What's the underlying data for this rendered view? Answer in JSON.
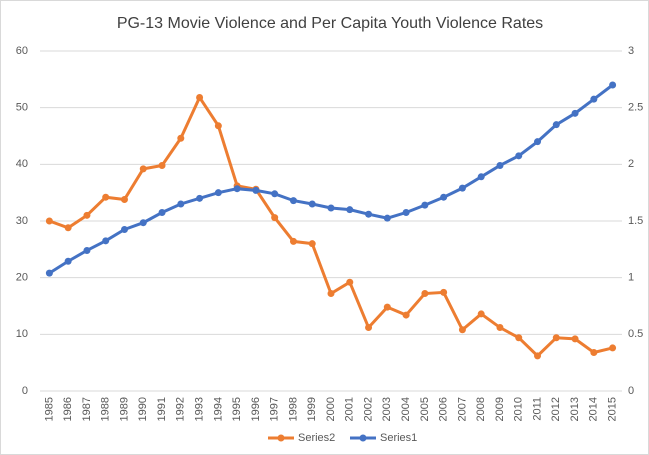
{
  "chart_data": {
    "type": "line",
    "title": "PG-13 Movie Violence and Per Capita Youth Violence Rates",
    "categories": [
      "1985",
      "1986",
      "1987",
      "1988",
      "1989",
      "1990",
      "1991",
      "1992",
      "1993",
      "1994",
      "1995",
      "1996",
      "1997",
      "1998",
      "1999",
      "2000",
      "2001",
      "2002",
      "2003",
      "2004",
      "2005",
      "2006",
      "2007",
      "2008",
      "2009",
      "2010",
      "2011",
      "2012",
      "2013",
      "2014",
      "2015"
    ],
    "series": [
      {
        "name": "Series2",
        "color": "#ed7d31",
        "axis": "y2",
        "values": [
          1.5,
          1.44,
          1.55,
          1.71,
          1.69,
          1.96,
          1.99,
          2.23,
          2.59,
          2.34,
          1.81,
          1.78,
          1.53,
          1.32,
          1.3,
          0.86,
          0.96,
          0.56,
          0.74,
          0.67,
          0.86,
          0.87,
          0.54,
          0.68,
          0.56,
          0.47,
          0.31,
          0.47,
          0.46,
          0.34,
          0.38
        ]
      },
      {
        "name": "Series1",
        "color": "#4472c4",
        "values": [
          20.8,
          22.9,
          24.8,
          26.5,
          28.5,
          29.7,
          31.5,
          33,
          34,
          35,
          35.7,
          35.4,
          34.8,
          33.6,
          33,
          32.3,
          32,
          31.2,
          30.5,
          31.5,
          32.8,
          34.2,
          35.8,
          37.8,
          39.8,
          41.5,
          44,
          47,
          49,
          51.5,
          54
        ]
      }
    ],
    "ylim": [
      0,
      60
    ],
    "yticks": [
      0,
      10,
      20,
      30,
      40,
      50,
      60
    ],
    "y2lim": [
      0,
      3
    ],
    "y2ticks": [
      0,
      0.5,
      1,
      1.5,
      2,
      2.5,
      3
    ],
    "grid": true,
    "legend": "bottom"
  }
}
